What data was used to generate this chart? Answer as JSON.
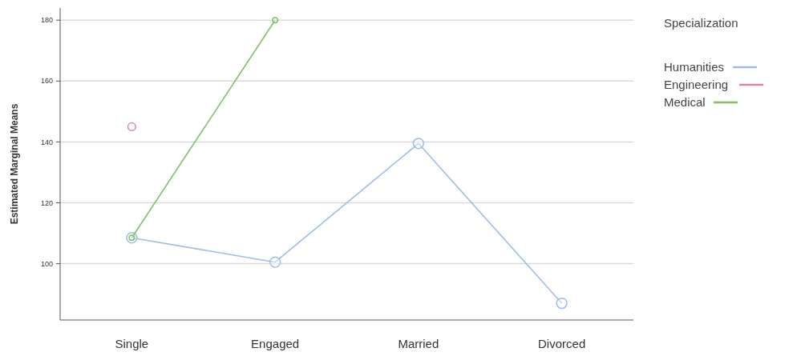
{
  "chart_data": {
    "type": "line",
    "ylabel": "Estimated Marginal Means",
    "legend_title": "Specialization",
    "categories": [
      "Single",
      "Engaged",
      "Married",
      "Divorced"
    ],
    "series": [
      {
        "name": "Humanities",
        "color": "#9dbde6",
        "values": [
          108.5,
          100.5,
          139.5,
          87
        ]
      },
      {
        "name": "Engineering",
        "color": "#d9849e",
        "values": [
          145,
          null,
          null,
          null
        ]
      },
      {
        "name": "Medical",
        "color": "#7fbf6a",
        "values": [
          108.5,
          180,
          null,
          null
        ]
      }
    ],
    "ylim": [
      81.5,
      184
    ],
    "yticks": [
      100,
      120,
      140,
      160,
      180
    ],
    "grid": "y",
    "legend": "right",
    "marker": "circle"
  }
}
